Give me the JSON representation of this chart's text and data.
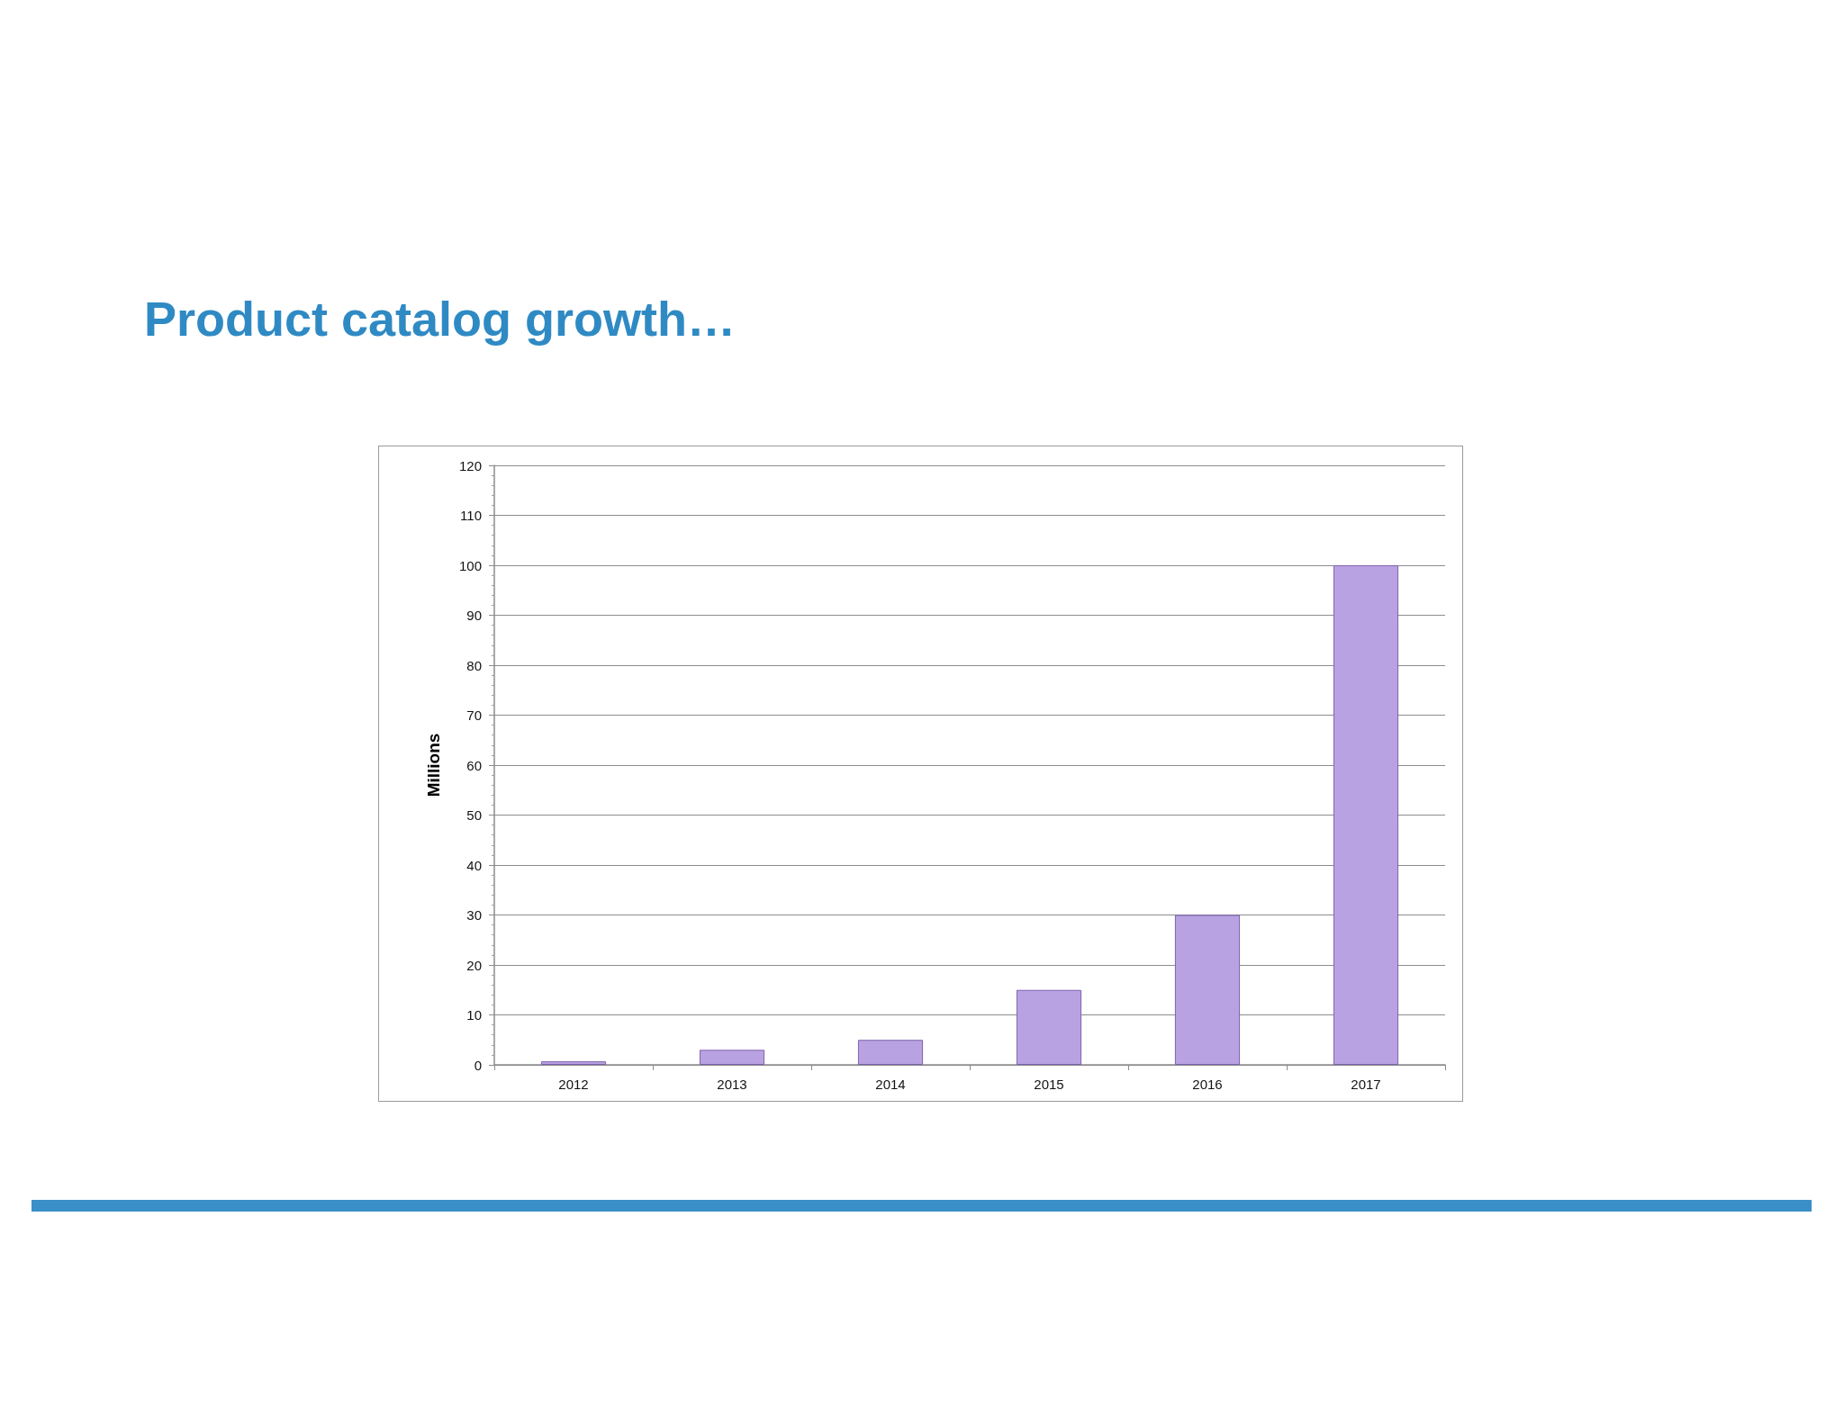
{
  "chart_data": {
    "type": "bar",
    "title": "Product catalog growth…",
    "ylabel": "Millions",
    "categories": [
      "2012",
      "2013",
      "2014",
      "2015",
      "2016",
      "2017"
    ],
    "values": [
      0.7,
      3,
      5,
      15,
      30,
      100
    ],
    "color": "#b9a2e2",
    "ylim": [
      0,
      120
    ],
    "yticks": [
      0,
      10,
      20,
      30,
      40,
      50,
      60,
      70,
      80,
      90,
      100,
      110,
      120
    ],
    "grid": "y"
  }
}
